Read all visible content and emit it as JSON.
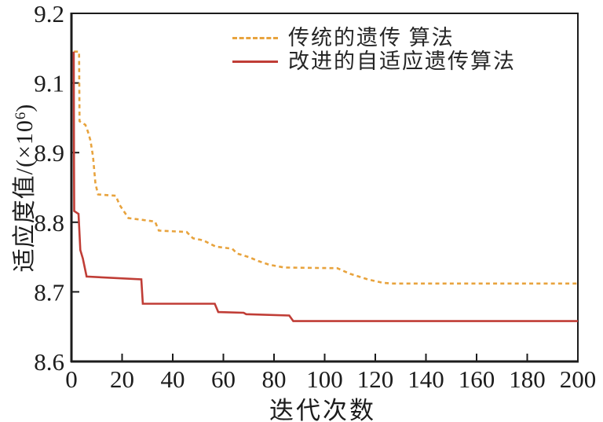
{
  "chart_data": {
    "type": "line",
    "title": "",
    "xlabel": "迭代次数",
    "ylabel": "适应度值/(×10⁶)",
    "ylabel_parts": {
      "main": "适应度值/(×10",
      "sup": "6",
      "close": ")"
    },
    "x_ticks": [
      "0",
      "20",
      "40",
      "60",
      "80",
      "100",
      "120",
      "140",
      "160",
      "180",
      "200"
    ],
    "x_tick_values": [
      0,
      20,
      40,
      60,
      80,
      100,
      120,
      140,
      160,
      180,
      200
    ],
    "xlim": [
      0,
      200
    ],
    "y_ticks": [
      "9.2",
      "9.1",
      "8.9",
      "8.8",
      "8.7",
      "8.6"
    ],
    "y_tick_values": [
      9.2,
      9.1,
      8.9,
      8.8,
      8.7,
      8.6
    ],
    "axis_note": "y ticks are equally spaced exactly as labeled in source figure (9.0 omitted)",
    "grid": false,
    "legend_position": "top-center-inside",
    "axis_color": "#1c1c1c",
    "series": [
      {
        "name": "传统的遗传 算法",
        "color": "#E8A33D",
        "style": "dashed",
        "points": [
          [
            1,
            9.145
          ],
          [
            3,
            9.145
          ],
          [
            3.2,
            8.99
          ],
          [
            5.5,
            8.98
          ],
          [
            6.5,
            8.96
          ],
          [
            7.5,
            8.935
          ],
          [
            8.5,
            8.895
          ],
          [
            9.5,
            8.855
          ],
          [
            10.5,
            8.84
          ],
          [
            17.5,
            8.838
          ],
          [
            19,
            8.825
          ],
          [
            22.5,
            8.806
          ],
          [
            33,
            8.801
          ],
          [
            34.5,
            8.788
          ],
          [
            45.5,
            8.786
          ],
          [
            48,
            8.777
          ],
          [
            52,
            8.774
          ],
          [
            57,
            8.765
          ],
          [
            63.5,
            8.762
          ],
          [
            65.5,
            8.755
          ],
          [
            70,
            8.75
          ],
          [
            74,
            8.744
          ],
          [
            78,
            8.739
          ],
          [
            84,
            8.735
          ],
          [
            105,
            8.734
          ],
          [
            110,
            8.726
          ],
          [
            117,
            8.718
          ],
          [
            123,
            8.713
          ],
          [
            127,
            8.712
          ],
          [
            200,
            8.712
          ]
        ]
      },
      {
        "name": "改进的自适应遗传算法",
        "color": "#C03D36",
        "style": "solid",
        "points": [
          [
            0.9,
            9.145
          ],
          [
            1.0,
            8.9
          ],
          [
            1.1,
            8.816
          ],
          [
            2.8,
            8.812
          ],
          [
            3.5,
            8.76
          ],
          [
            4.5,
            8.748
          ],
          [
            6,
            8.722
          ],
          [
            27.6,
            8.718
          ],
          [
            28.2,
            8.683
          ],
          [
            56.6,
            8.683
          ],
          [
            58,
            8.671
          ],
          [
            68,
            8.67
          ],
          [
            69,
            8.668
          ],
          [
            86,
            8.666
          ],
          [
            87.6,
            8.658
          ],
          [
            200,
            8.658
          ]
        ]
      }
    ]
  }
}
